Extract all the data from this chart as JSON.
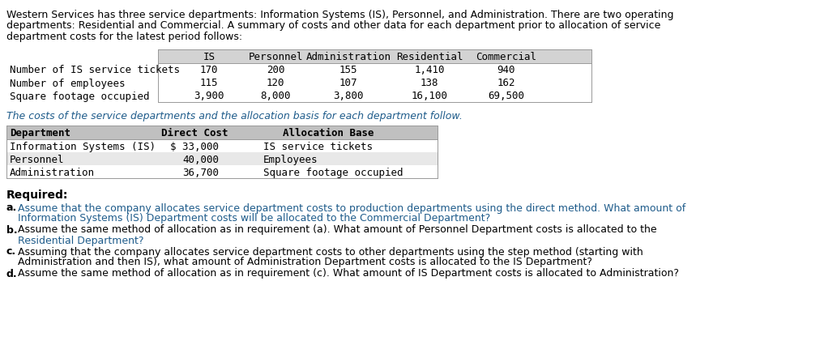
{
  "intro_lines": [
    "Western Services has three service departments: Information Systems (IS), Personnel, and Administration. There are two operating",
    "departments: Residential and Commercial. A summary of costs and other data for each department prior to allocation of service",
    "department costs for the latest period follows:"
  ],
  "table1_header": [
    "IS",
    "Personnel",
    "Administration",
    "Residential",
    "Commercial"
  ],
  "table1_rows": [
    [
      "Number of IS service tickets",
      "170",
      "200",
      "155",
      "1,410",
      "940"
    ],
    [
      "Number of employees",
      "115",
      "120",
      "107",
      "138",
      "162"
    ],
    [
      "Square footage occupied",
      "3,900",
      "8,000",
      "3,800",
      "16,100",
      "69,500"
    ]
  ],
  "mid_text": "The costs of the service departments and the allocation basis for each department follow.",
  "table2_header": [
    "Department",
    "Direct Cost",
    "Allocation Base"
  ],
  "table2_rows": [
    [
      "Information Systems (IS)",
      "$ 33,000",
      "IS service tickets"
    ],
    [
      "Personnel",
      "40,000",
      "Employees"
    ],
    [
      "Administration",
      "36,700",
      "Square footage occupied"
    ]
  ],
  "required_label": "Required:",
  "questions": [
    {
      "label": "a.",
      "line1": "Assume that the company allocates service department costs to production departments using the direct method. What amount of",
      "line2": "Information Systems (IS) Department costs will be allocated to the Commercial Department?",
      "line1_blue": true,
      "line2_blue": true
    },
    {
      "label": "b.",
      "line1": "Assume the same method of allocation as in requirement (a). What amount of Personnel Department costs is allocated to the",
      "line2": "Residential Department?",
      "line1_blue": false,
      "line2_blue": true
    },
    {
      "label": "c.",
      "line1": "Assuming that the company allocates service department costs to other departments using the step method (starting with",
      "line2": "Administration and then IS), what amount of Administration Department costs is allocated to the IS Department?",
      "line1_blue": false,
      "line2_blue": false
    },
    {
      "label": "d.",
      "line1": "Assume the same method of allocation as in requirement (c). What amount of IS Department costs is allocated to Administration?",
      "line2": null,
      "line1_blue": false,
      "line2_blue": false
    }
  ],
  "bg_color": "#ffffff",
  "table1_header_bg": "#d3d3d3",
  "table2_header_bg": "#c0c0c0",
  "table2_row1_bg": "#ffffff",
  "table2_row2_bg": "#e8e8e8",
  "text_color": "#000000",
  "blue_color": "#1f5c8b",
  "font_size": 9.0,
  "mono_font": "DejaVu Sans Mono",
  "sans_font": "DejaVu Sans"
}
